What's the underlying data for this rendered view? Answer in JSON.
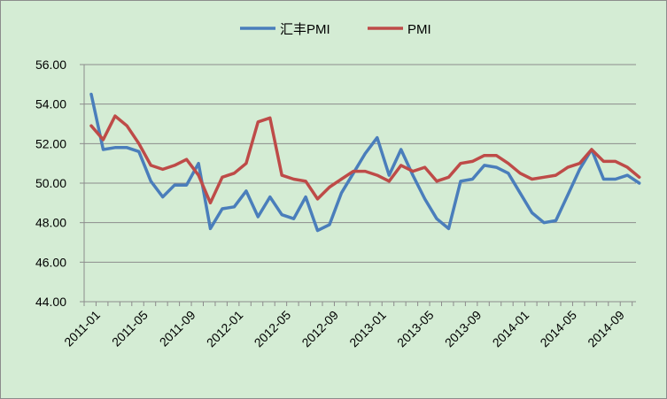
{
  "chart_data": {
    "type": "line",
    "title": "",
    "xlabel": "",
    "ylabel": "",
    "ylim": [
      44,
      56
    ],
    "y_ticks": [
      "44.00",
      "46.00",
      "48.00",
      "50.00",
      "52.00",
      "54.00",
      "56.00"
    ],
    "x_tick_labels": [
      "2011-01",
      "2011-05",
      "2011-09",
      "2012-01",
      "2012-05",
      "2012-09",
      "2013-01",
      "2013-05",
      "2013-09",
      "2014-01",
      "2014-05",
      "2014-09"
    ],
    "grid": true,
    "legend_position": "top",
    "x": [
      "2011-01",
      "2011-02",
      "2011-03",
      "2011-04",
      "2011-05",
      "2011-06",
      "2011-07",
      "2011-08",
      "2011-09",
      "2011-10",
      "2011-11",
      "2011-12",
      "2012-01",
      "2012-02",
      "2012-03",
      "2012-04",
      "2012-05",
      "2012-06",
      "2012-07",
      "2012-08",
      "2012-09",
      "2012-10",
      "2012-11",
      "2012-12",
      "2013-01",
      "2013-02",
      "2013-03",
      "2013-04",
      "2013-05",
      "2013-06",
      "2013-07",
      "2013-08",
      "2013-09",
      "2013-10",
      "2013-11",
      "2013-12",
      "2014-01",
      "2014-02",
      "2014-03",
      "2014-04",
      "2014-05",
      "2014-06",
      "2014-07",
      "2014-08",
      "2014-09",
      "2014-10",
      "2014-11"
    ],
    "series": [
      {
        "name": "汇丰PMI",
        "color": "#4a7ebb",
        "values": [
          54.5,
          51.7,
          51.8,
          51.8,
          51.6,
          50.1,
          49.3,
          49.9,
          49.9,
          51.0,
          47.7,
          48.7,
          48.8,
          49.6,
          48.3,
          49.3,
          48.4,
          48.2,
          49.3,
          47.6,
          47.9,
          49.5,
          50.5,
          51.5,
          52.3,
          50.4,
          51.7,
          50.4,
          49.2,
          48.2,
          47.7,
          50.1,
          50.2,
          50.9,
          50.8,
          50.5,
          49.5,
          48.5,
          48.0,
          48.1,
          49.4,
          50.7,
          51.7,
          50.2,
          50.2,
          50.4,
          50.0
        ]
      },
      {
        "name": "PMI",
        "color": "#be4b48",
        "values": [
          52.9,
          52.2,
          53.4,
          52.9,
          52.0,
          50.9,
          50.7,
          50.9,
          51.2,
          50.4,
          49.0,
          50.3,
          50.5,
          51.0,
          53.1,
          53.3,
          50.4,
          50.2,
          50.1,
          49.2,
          49.8,
          50.2,
          50.6,
          50.6,
          50.4,
          50.1,
          50.9,
          50.6,
          50.8,
          50.1,
          50.3,
          51.0,
          51.1,
          51.4,
          51.4,
          51.0,
          50.5,
          50.2,
          50.3,
          50.4,
          50.8,
          51.0,
          51.7,
          51.1,
          51.1,
          50.8,
          50.3
        ]
      }
    ]
  }
}
